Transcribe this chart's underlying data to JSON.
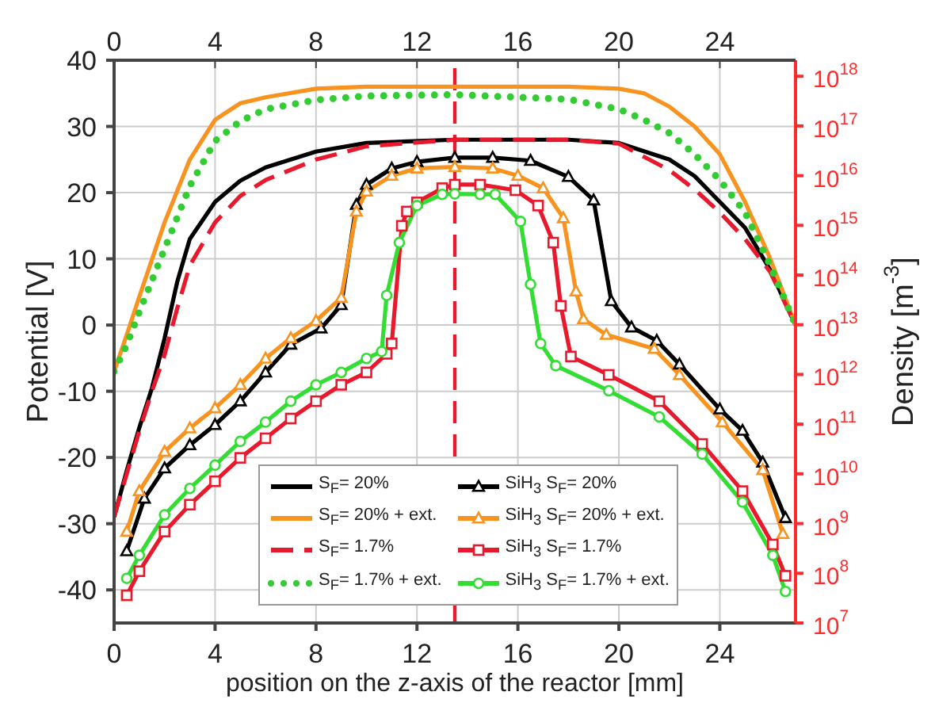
{
  "chart_data": {
    "type": "line",
    "xlabel": "position on the z-axis of the reactor [mm]",
    "ylabel": "Potential [V]",
    "y2label": "Density [m$^{-3}$]",
    "xlim": [
      0,
      27
    ],
    "xticks": [
      0,
      4,
      8,
      12,
      16,
      20,
      24
    ],
    "x2lim": [
      0,
      27
    ],
    "x2ticks": [
      0,
      4,
      8,
      12,
      16,
      20,
      24
    ],
    "ylim": [
      -45,
      40
    ],
    "yticks": [
      -40,
      -30,
      -20,
      -10,
      0,
      10,
      20,
      30,
      40
    ],
    "y2lim": [
      10000000.0,
      2.1e+18
    ],
    "y2ticks": [
      {
        "value": 10000000.0,
        "label": "10$^{7}$"
      },
      {
        "value": 100000000.0,
        "label": "10$^{8}$"
      },
      {
        "value": 1000000000.0,
        "label": "10$^{9}$"
      },
      {
        "value": 10000000000.0,
        "label": "10$^{10}$"
      },
      {
        "value": 100000000000.0,
        "label": "10$^{11}$"
      },
      {
        "value": 1000000000000.0,
        "label": "10$^{12}$"
      },
      {
        "value": 10000000000000.0,
        "label": "10$^{13}$"
      },
      {
        "value": 100000000000000.0,
        "label": "10$^{14}$"
      },
      {
        "value": 1000000000000000.0,
        "label": "10$^{15}$"
      },
      {
        "value": 1e+16,
        "label": "10$^{16}$"
      },
      {
        "value": 1e+17,
        "label": "10$^{17}$"
      },
      {
        "value": 1e+18,
        "label": "10$^{18}$"
      }
    ],
    "log": "y2",
    "grid": true,
    "legend": "bottom",
    "ref_lines": [
      {
        "axis": "x",
        "value": 13.5,
        "color": "#e8192c",
        "line_style": "dashed"
      }
    ],
    "series": [
      {
        "name": "S$_{F}$= 20%",
        "color": "#000000",
        "marker": "none",
        "line_style": "solid",
        "x": [
          0,
          0.5,
          1,
          1.5,
          2,
          2.5,
          3,
          4,
          5,
          6,
          8,
          10,
          13.5,
          18,
          20,
          22,
          23,
          24,
          25,
          26,
          27
        ],
        "values": [
          -29,
          -22,
          -15.5,
          -9.5,
          -2,
          6.5,
          13,
          18.6,
          21.8,
          23.8,
          26.2,
          27.5,
          28,
          28,
          27.5,
          25,
          22.5,
          18.6,
          14.7,
          8.3,
          0
        ]
      },
      {
        "name": "S$_{F}$= 20% + ext.",
        "color": "#f7931e",
        "marker": "none",
        "line_style": "solid",
        "x": [
          0,
          0.5,
          1,
          2,
          3,
          4,
          5,
          6,
          8,
          10,
          13.5,
          18,
          20,
          21,
          22,
          23,
          24,
          25,
          26,
          27
        ],
        "values": [
          -7,
          -1.5,
          4.3,
          15.5,
          25,
          31,
          33.5,
          34.4,
          35.7,
          36,
          36,
          36,
          35.7,
          35,
          33,
          30,
          25.8,
          18.6,
          10,
          0
        ]
      },
      {
        "name": "S$_{F}$= 1.7%",
        "color": "#e8192c",
        "marker": "none",
        "line_style": "dashed",
        "x": [
          0,
          0.5,
          1,
          1.5,
          2,
          2.5,
          3,
          4,
          5,
          6,
          8,
          10,
          13.5,
          18,
          20,
          22,
          23,
          24,
          25,
          26,
          27
        ],
        "values": [
          -29,
          -22.5,
          -16,
          -10,
          -4.5,
          2.5,
          9,
          15.5,
          19.5,
          21.9,
          25,
          27,
          28,
          28,
          27.4,
          23.4,
          20.5,
          17,
          13,
          8,
          0
        ]
      },
      {
        "name": "S$_{F}$= 1.7% + ext.",
        "color": "#33cc33",
        "marker": "none",
        "line_style": "dotted",
        "x": [
          0,
          0.5,
          1,
          2,
          3,
          4,
          5,
          6,
          8,
          10,
          13.5,
          18,
          20,
          21,
          22,
          23,
          24,
          25,
          26,
          27
        ],
        "values": [
          -7,
          -3,
          2,
          11.5,
          21,
          27.8,
          30.8,
          32.6,
          34,
          34.6,
          34.8,
          34.1,
          32.6,
          31,
          29,
          25.8,
          21.9,
          17,
          9,
          0
        ]
      },
      {
        "name": "SiH$_{3}$ S$_{F}$= 20%",
        "color": "#000000",
        "axis": "y2",
        "marker": "triangle",
        "line_style": "solid",
        "x": [
          0.5,
          1.2,
          2,
          3,
          4,
          5,
          6,
          7,
          8.2,
          9,
          9.6,
          10,
          11,
          12,
          13.5,
          15,
          16.5,
          18,
          19,
          19.7,
          20.5,
          21.5,
          22.4,
          24,
          24.9,
          25.7,
          26.6
        ],
        "values": [
          280000000.0,
          3200000000.0,
          13000000000.0,
          38000000000.0,
          97000000000.0,
          290000000000.0,
          1100000000000.0,
          4000000000000.0,
          8500000000000.0,
          25000000000000.0,
          2600000000000000.0,
          6600000000000000.0,
          1.4e+16,
          1.9e+16,
          2.3e+16,
          2.3e+16,
          2e+16,
          9500000000000000.0,
          3200000000000000.0,
          30000000000000.0,
          8900000000000.0,
          4800000000000.0,
          1600000000000.0,
          200000000000.0,
          74000000000.0,
          17000000000.0,
          1300000000.0
        ]
      },
      {
        "name": "SiH$_{3}$ S$_{F}$= 20% + ext.",
        "color": "#f7931e",
        "axis": "y2",
        "marker": "triangle",
        "line_style": "solid",
        "x": [
          0.5,
          1,
          2,
          3,
          4,
          5,
          6,
          7,
          8,
          9,
          9.6,
          10,
          11,
          12,
          13.5,
          15,
          16,
          17,
          17.8,
          18.3,
          18.6,
          19.5,
          21.4,
          22.4,
          24.1,
          25.7,
          26.5
        ],
        "values": [
          690000000.0,
          4500000000.0,
          28000000000.0,
          83000000000.0,
          210000000000.0,
          620000000000.0,
          2100000000000.0,
          5400000000000.0,
          12000000000000.0,
          35000000000000.0,
          1900000000000000.0,
          4800000000000000.0,
          1e+16,
          1.4e+16,
          1.5e+16,
          1.4e+16,
          1e+16,
          5600000000000000.0,
          1400000000000000.0,
          47000000000000.0,
          13000000000000.0,
          6300000000000.0,
          3300000000000.0,
          980000000000.0,
          110000000000.0,
          12000000000.0,
          620000000.0
        ]
      },
      {
        "name": "SiH$_{3}$ S$_{F}$= 1.7%",
        "color": "#e8192c",
        "axis": "y2",
        "marker": "square",
        "line_style": "solid",
        "x": [
          0.5,
          1,
          2,
          3,
          4,
          5,
          6,
          7,
          8,
          9,
          10,
          10.8,
          11,
          11.4,
          11.6,
          12,
          13,
          13.5,
          14.5,
          15.9,
          16.8,
          17.4,
          17.7,
          18.1,
          19.6,
          21.6,
          23.3,
          24.9,
          26.1,
          26.6
        ],
        "values": [
          36000000.0,
          110000000.0,
          690000000.0,
          2400000000.0,
          7100000000.0,
          21000000000.0,
          52000000000.0,
          130000000000.0,
          290000000000.0,
          620000000000.0,
          1100000000000.0,
          2600000000000.0,
          4200000000000.0,
          980000000000000.0,
          1900000000000000.0,
          2900000000000000.0,
          5600000000000000.0,
          6600000000000000.0,
          6600000000000000.0,
          5100000000000000.0,
          2500000000000000.0,
          450000000000000.0,
          24000000000000.0,
          2300000000000.0,
          980000000000.0,
          290000000000.0,
          40000000000.0,
          4500000000.0,
          380000000.0,
          89000000.0
        ]
      },
      {
        "name": "SiH$_{3}$ S$_{F}$= 1.7% + ext.",
        "color": "#33dd33",
        "axis": "y2",
        "marker": "circle",
        "line_style": "solid",
        "x": [
          0.5,
          1,
          2,
          3,
          4,
          5,
          6,
          7,
          8,
          9,
          10,
          10.6,
          10.8,
          11.3,
          12,
          13,
          13.5,
          14.5,
          15.1,
          16.1,
          16.5,
          16.9,
          17.5,
          19.6,
          21.6,
          23.3,
          24.9,
          26.1,
          26.6
        ],
        "values": [
          79000000.0,
          230000000.0,
          1500000000.0,
          5100000000.0,
          15000000000.0,
          45000000000.0,
          110000000000.0,
          290000000000.0,
          620000000000.0,
          1100000000000.0,
          2100000000000.0,
          2900000000000.0,
          39000000000000.0,
          450000000000000.0,
          2500000000000000.0,
          4200000000000000.0,
          4300000000000000.0,
          4200000000000000.0,
          4200000000000000.0,
          1200000000000000.0,
          65000000000000.0,
          4200000000000.0,
          1500000000000.0,
          470000000000.0,
          140000000000.0,
          25000000000.0,
          2700000000.0,
          230000000.0,
          43000000.0
        ]
      }
    ]
  }
}
